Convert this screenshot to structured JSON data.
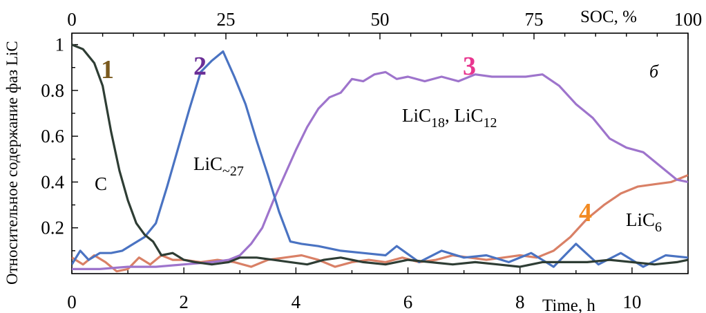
{
  "chart_data": {
    "type": "line",
    "xlabel": "Time, h",
    "x2label": "SOC, %",
    "ylabel": "Относительное содержание фаз LiC",
    "panel_label": "б",
    "xlim": [
      0,
      11
    ],
    "x2lim": [
      0,
      100
    ],
    "ylim": [
      0,
      1.05
    ],
    "x_ticks": [
      "0",
      "2",
      "4",
      "6",
      "8",
      "10"
    ],
    "x2_ticks": [
      "0",
      "25",
      "50",
      "75",
      "100"
    ],
    "y_ticks": [
      "0.2",
      "0.4",
      "0.6",
      "0.8",
      "1"
    ],
    "grid": false,
    "series": [
      {
        "id": "1",
        "name": "C",
        "color": "#2e3d34",
        "number_color": "#7a5a1e",
        "x": [
          0,
          0.2,
          0.4,
          0.55,
          0.7,
          0.85,
          1.0,
          1.15,
          1.3,
          1.45,
          1.6,
          1.8,
          2.0,
          2.2,
          2.5,
          2.8,
          3.0,
          3.3,
          3.6,
          3.9,
          4.2,
          4.5,
          4.8,
          5.2,
          5.6,
          6.0,
          6.4,
          6.8,
          7.2,
          7.6,
          8.0,
          8.4,
          8.8,
          9.2,
          9.6,
          10.0,
          10.4,
          10.8,
          11
        ],
        "y": [
          1.0,
          0.98,
          0.92,
          0.82,
          0.62,
          0.45,
          0.32,
          0.22,
          0.17,
          0.14,
          0.08,
          0.09,
          0.06,
          0.05,
          0.04,
          0.05,
          0.07,
          0.07,
          0.06,
          0.05,
          0.04,
          0.06,
          0.07,
          0.05,
          0.04,
          0.06,
          0.05,
          0.04,
          0.05,
          0.04,
          0.03,
          0.05,
          0.05,
          0.05,
          0.06,
          0.05,
          0.04,
          0.05,
          0.06
        ]
      },
      {
        "id": "2",
        "name": "LiC~27",
        "color": "#4a73c2",
        "number_color": "#6b2f97",
        "x": [
          0,
          0.15,
          0.3,
          0.5,
          0.7,
          0.9,
          1.1,
          1.3,
          1.5,
          1.7,
          1.9,
          2.1,
          2.3,
          2.5,
          2.7,
          2.9,
          3.1,
          3.3,
          3.5,
          3.7,
          3.9,
          4.1,
          4.4,
          4.8,
          5.2,
          5.6,
          5.8,
          6.2,
          6.6,
          7.0,
          7.4,
          7.8,
          8.2,
          8.6,
          9.0,
          9.4,
          9.8,
          10.2,
          10.6,
          11
        ],
        "y": [
          0.04,
          0.1,
          0.06,
          0.09,
          0.09,
          0.1,
          0.13,
          0.16,
          0.22,
          0.38,
          0.55,
          0.72,
          0.88,
          0.93,
          0.97,
          0.86,
          0.74,
          0.58,
          0.43,
          0.27,
          0.14,
          0.13,
          0.12,
          0.1,
          0.09,
          0.08,
          0.12,
          0.05,
          0.1,
          0.07,
          0.08,
          0.05,
          0.09,
          0.03,
          0.13,
          0.04,
          0.09,
          0.03,
          0.08,
          0.07
        ]
      },
      {
        "id": "3",
        "name": "LiC18, LiC12",
        "color": "#9e74cc",
        "number_color": "#e8368f",
        "x": [
          0,
          0.5,
          1.0,
          1.5,
          2.0,
          2.5,
          2.8,
          3.0,
          3.2,
          3.4,
          3.6,
          3.8,
          4.0,
          4.2,
          4.4,
          4.6,
          4.8,
          5.0,
          5.2,
          5.4,
          5.6,
          5.8,
          6.0,
          6.3,
          6.6,
          6.9,
          7.2,
          7.5,
          7.8,
          8.1,
          8.4,
          8.7,
          9.0,
          9.3,
          9.6,
          9.9,
          10.2,
          10.5,
          10.8,
          11
        ],
        "y": [
          0.02,
          0.02,
          0.03,
          0.03,
          0.04,
          0.05,
          0.06,
          0.08,
          0.13,
          0.2,
          0.32,
          0.43,
          0.54,
          0.64,
          0.72,
          0.77,
          0.79,
          0.85,
          0.84,
          0.87,
          0.88,
          0.85,
          0.86,
          0.84,
          0.86,
          0.84,
          0.87,
          0.86,
          0.86,
          0.86,
          0.87,
          0.82,
          0.74,
          0.68,
          0.59,
          0.55,
          0.53,
          0.47,
          0.41,
          0.4
        ]
      },
      {
        "id": "4",
        "name": "LiC6",
        "color": "#d98066",
        "number_color": "#f28a22",
        "x": [
          0,
          0.2,
          0.4,
          0.6,
          0.8,
          1.0,
          1.2,
          1.4,
          1.6,
          1.8,
          2.0,
          2.3,
          2.6,
          2.9,
          3.2,
          3.5,
          3.8,
          4.1,
          4.4,
          4.7,
          5.0,
          5.3,
          5.6,
          5.9,
          6.2,
          6.5,
          6.8,
          7.1,
          7.4,
          7.7,
          8.0,
          8.3,
          8.6,
          8.9,
          9.2,
          9.5,
          9.8,
          10.1,
          10.4,
          10.7,
          11
        ],
        "y": [
          0.07,
          0.04,
          0.08,
          0.05,
          0.01,
          0.02,
          0.07,
          0.04,
          0.08,
          0.06,
          0.06,
          0.05,
          0.06,
          0.05,
          0.03,
          0.06,
          0.07,
          0.08,
          0.06,
          0.03,
          0.05,
          0.06,
          0.05,
          0.07,
          0.05,
          0.06,
          0.08,
          0.07,
          0.06,
          0.07,
          0.08,
          0.07,
          0.1,
          0.16,
          0.24,
          0.3,
          0.35,
          0.38,
          0.39,
          0.4,
          0.43
        ]
      }
    ]
  }
}
